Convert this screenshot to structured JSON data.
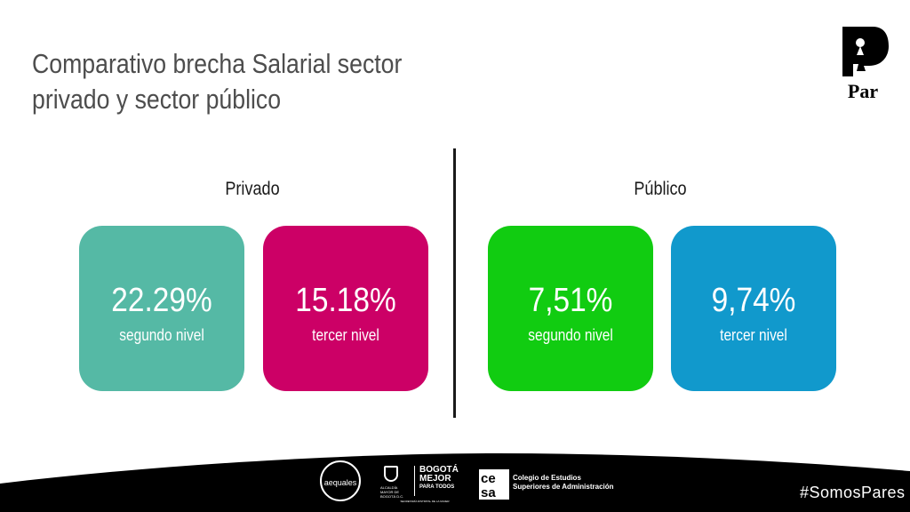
{
  "slide": {
    "title_line1": "Comparativo brecha Salarial sector",
    "title_line2": "privado y sector público",
    "logo": {
      "name": "Par",
      "icon": "par-logo-icon"
    }
  },
  "sections": {
    "privado": {
      "label": "Privado",
      "cards": [
        {
          "value": "22.29%",
          "sub": "segundo nivel",
          "color": "#55b9a5"
        },
        {
          "value": "15.18%",
          "sub": "tercer nivel",
          "color": "#cc0066"
        }
      ]
    },
    "publico": {
      "label": "Público",
      "cards": [
        {
          "value": "7,51%",
          "sub": "segundo nivel",
          "color": "#11cc11"
        },
        {
          "value": "9,74%",
          "sub": "tercer nivel",
          "color": "#1199cc"
        }
      ]
    }
  },
  "footer": {
    "aequales": "aequales",
    "alcaldia": "ALCALDÍA MAYOR DE BOGOTÁ D.C.",
    "bogota_line1": "BOGOTÁ",
    "bogota_line2": "MEJOR",
    "bogota_line3": "PARA TODOS",
    "secretaria": "SECRETARÍA DISTRITAL DE LA MUJER",
    "cesa_line1": "Colegio de Estudios",
    "cesa_line2": "Superiores de Administración",
    "hashtag": "#SomosPares",
    "background": "#000000"
  }
}
